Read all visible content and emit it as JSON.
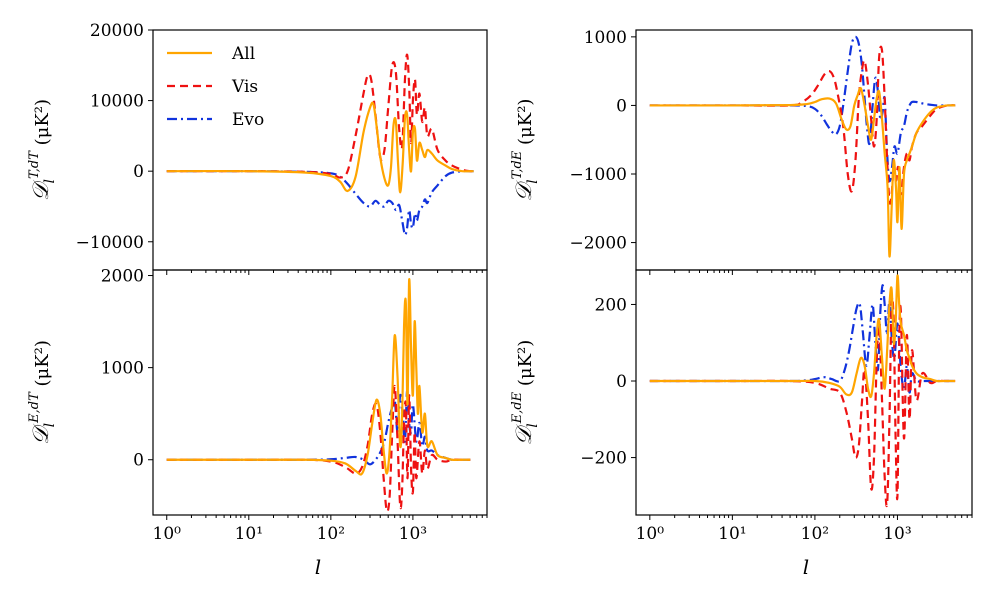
{
  "figure": {
    "xlabel": "l",
    "series_styles": [
      {
        "name": "All",
        "color": "#FFA500",
        "dash": ""
      },
      {
        "name": "Vis",
        "color": "#EE1111",
        "dash": "8,5"
      },
      {
        "name": "Evo",
        "color": "#1133DD",
        "dash": "10,4,2,4"
      }
    ],
    "legend": {
      "location": "top-left of top-left panel",
      "entries": [
        "All",
        "Vis",
        "Evo"
      ]
    }
  },
  "chart_data": [
    {
      "type": "line",
      "panel": "top-left",
      "ylabel_main": "𝒟",
      "ylabel_sub": "l",
      "ylabel_sup": "T,dT",
      "ylabel_unit": " (μK²)",
      "xscale": "log",
      "xlim": [
        0.68,
        8000
      ],
      "ylim": [
        -14000,
        20000
      ],
      "yticks": [
        -10000,
        0,
        10000,
        20000
      ],
      "yticklabels": [
        "−10000",
        "0",
        "10000",
        "20000"
      ],
      "xticklabels": [],
      "series": [
        {
          "name": "All",
          "x": [
            1,
            10,
            50,
            100,
            130,
            160,
            200,
            250,
            300,
            330,
            360,
            400,
            450,
            500,
            540,
            580,
            620,
            660,
            700,
            750,
            800,
            850,
            900,
            950,
            1000,
            1060,
            1120,
            1200,
            1300,
            1400,
            1500,
            1700,
            2000,
            2500,
            3000,
            4000,
            5000,
            5500
          ],
          "values": [
            0,
            0,
            -200,
            -700,
            -1500,
            -2800,
            -800,
            5500,
            9000,
            9500,
            6500,
            2000,
            -1000,
            -2000,
            500,
            6500,
            7000,
            1000,
            -3000,
            1000,
            7500,
            8000,
            3000,
            0,
            5500,
            6000,
            1500,
            4000,
            3000,
            2000,
            3000,
            2500,
            1500,
            800,
            300,
            0,
            0,
            0
          ]
        },
        {
          "name": "Vis",
          "x": [
            1,
            10,
            50,
            100,
            130,
            160,
            200,
            250,
            280,
            310,
            350,
            400,
            450,
            500,
            560,
            620,
            680,
            740,
            800,
            850,
            900,
            950,
            1000,
            1060,
            1120,
            1200,
            1300,
            1400,
            1500,
            1700,
            2000,
            2500,
            3000,
            4000,
            5000,
            5500
          ],
          "values": [
            0,
            0,
            -100,
            -400,
            -900,
            0,
            5000,
            11000,
            13500,
            13000,
            8000,
            2000,
            3000,
            9000,
            15000,
            14000,
            6000,
            3500,
            13000,
            16500,
            12000,
            4000,
            10000,
            13000,
            8000,
            11000,
            7000,
            9000,
            5000,
            6000,
            3000,
            1500,
            800,
            200,
            0,
            0
          ]
        },
        {
          "name": "Evo",
          "x": [
            1,
            10,
            50,
            100,
            130,
            160,
            200,
            250,
            300,
            350,
            400,
            450,
            500,
            560,
            620,
            680,
            740,
            800,
            850,
            900,
            950,
            1000,
            1060,
            1120,
            1200,
            1300,
            1400,
            1500,
            1700,
            2000,
            2500,
            3000,
            4000,
            5000,
            5500
          ],
          "values": [
            0,
            0,
            -100,
            -300,
            -800,
            -1800,
            -3200,
            -4500,
            -5000,
            -4200,
            -4800,
            -5000,
            -4200,
            -4500,
            -5500,
            -4800,
            -7000,
            -9000,
            -8000,
            -5500,
            -7500,
            -8000,
            -6000,
            -7000,
            -5500,
            -5000,
            -4000,
            -4500,
            -3000,
            -2000,
            -700,
            -200,
            0,
            0,
            0
          ]
        }
      ]
    },
    {
      "type": "line",
      "panel": "top-right",
      "ylabel_main": "𝒟",
      "ylabel_sub": "l",
      "ylabel_sup": "T,dE",
      "ylabel_unit": " (μK²)",
      "xscale": "log",
      "xlim": [
        0.68,
        8000
      ],
      "ylim": [
        -2400,
        1100
      ],
      "yticks": [
        -2000,
        -1000,
        0,
        1000
      ],
      "yticklabels": [
        "−2000",
        "−1000",
        "0",
        "1000"
      ],
      "xticklabels": [],
      "series": [
        {
          "name": "All",
          "x": [
            1,
            10,
            50,
            80,
            100,
            120,
            150,
            180,
            210,
            240,
            270,
            300,
            330,
            360,
            400,
            440,
            480,
            520,
            560,
            600,
            650,
            700,
            760,
            800,
            850,
            900,
            960,
            1000,
            1060,
            1120,
            1200,
            1300,
            1400,
            1500,
            1700,
            2000,
            2500,
            3000,
            4000,
            5000
          ],
          "values": [
            0,
            0,
            5,
            20,
            50,
            90,
            100,
            30,
            -200,
            -350,
            -300,
            0,
            150,
            250,
            0,
            -300,
            -500,
            -200,
            100,
            200,
            -200,
            -700,
            -1200,
            -2200,
            -1500,
            -800,
            -1200,
            -1700,
            -900,
            -1800,
            -1000,
            -800,
            -700,
            -600,
            -400,
            -250,
            -100,
            -30,
            0,
            0
          ]
        },
        {
          "name": "Vis",
          "x": [
            1,
            10,
            50,
            70,
            90,
            110,
            130,
            150,
            170,
            190,
            220,
            250,
            280,
            310,
            340,
            370,
            400,
            440,
            480,
            520,
            560,
            600,
            650,
            700,
            750,
            800,
            850,
            900,
            960,
            1020,
            1100,
            1200,
            1300,
            1400,
            1500,
            1700,
            2000,
            2500,
            3000,
            4000,
            5000
          ],
          "values": [
            0,
            0,
            0,
            50,
            150,
            300,
            450,
            500,
            400,
            150,
            -300,
            -1000,
            -1250,
            -800,
            100,
            500,
            650,
            300,
            -200,
            -600,
            -200,
            700,
            800,
            100,
            -800,
            -1400,
            -1300,
            -900,
            -1100,
            -900,
            -1300,
            -900,
            -700,
            -800,
            -600,
            -400,
            -300,
            -150,
            -50,
            0,
            0
          ]
        },
        {
          "name": "Evo",
          "x": [
            1,
            10,
            50,
            80,
            100,
            120,
            140,
            160,
            180,
            200,
            220,
            250,
            280,
            310,
            340,
            370,
            400,
            430,
            460,
            500,
            540,
            580,
            620,
            660,
            700,
            750,
            800,
            860,
            920,
            1000,
            1100,
            1200,
            1300,
            1400,
            1500,
            1700,
            2000,
            2500,
            3000,
            4000,
            5000
          ],
          "values": [
            0,
            0,
            0,
            -10,
            -50,
            -150,
            -280,
            -380,
            -420,
            -300,
            0,
            500,
            900,
            1000,
            900,
            600,
            100,
            -350,
            -550,
            0,
            400,
            200,
            -200,
            -100,
            100,
            -700,
            -1100,
            -900,
            -600,
            -700,
            -400,
            -300,
            -100,
            0,
            50,
            50,
            30,
            10,
            0,
            0,
            0
          ]
        }
      ]
    },
    {
      "type": "line",
      "panel": "bottom-left",
      "ylabel_main": "𝒟",
      "ylabel_sub": "l",
      "ylabel_sup": "E,dT",
      "ylabel_unit": " (μK²)",
      "xscale": "log",
      "xlim": [
        0.68,
        8000
      ],
      "ylim": [
        -600,
        2060
      ],
      "yticks": [
        0,
        1000,
        2000
      ],
      "yticklabels": [
        "0",
        "1000",
        "2000"
      ],
      "xticks": [
        1,
        10,
        100,
        1000
      ],
      "xticklabels": [
        "10⁰",
        "10¹",
        "10²",
        "10³"
      ],
      "series": [
        {
          "name": "All",
          "x": [
            1,
            10,
            50,
            100,
            150,
            200,
            240,
            280,
            320,
            360,
            400,
            440,
            480,
            520,
            560,
            600,
            650,
            700,
            740,
            780,
            820,
            860,
            900,
            950,
            1000,
            1050,
            1100,
            1150,
            1200,
            1300,
            1400,
            1500,
            1700,
            2000,
            2500,
            3000,
            4000,
            5000
          ],
          "values": [
            0,
            0,
            0,
            -10,
            -40,
            -120,
            -150,
            50,
            400,
            650,
            500,
            100,
            -150,
            100,
            700,
            1350,
            900,
            150,
            500,
            1450,
            1700,
            600,
            1950,
            1200,
            700,
            1500,
            1000,
            500,
            800,
            300,
            500,
            150,
            200,
            50,
            20,
            0,
            0,
            0
          ]
        },
        {
          "name": "Vis",
          "x": [
            1,
            10,
            50,
            100,
            150,
            200,
            240,
            280,
            320,
            360,
            400,
            440,
            480,
            520,
            560,
            600,
            650,
            700,
            740,
            780,
            820,
            860,
            900,
            950,
            1000,
            1050,
            1100,
            1200,
            1300,
            1400,
            1500,
            1700,
            2000,
            2500,
            3000,
            4000,
            5000
          ],
          "values": [
            0,
            0,
            0,
            -20,
            -80,
            -150,
            -80,
            150,
            500,
            600,
            300,
            -200,
            -550,
            -400,
            300,
            800,
            200,
            -500,
            -300,
            400,
            600,
            -200,
            700,
            -100,
            -350,
            300,
            -200,
            200,
            -150,
            100,
            -100,
            50,
            0,
            -20,
            0,
            0,
            0
          ]
        },
        {
          "name": "Evo",
          "x": [
            1,
            10,
            50,
            100,
            150,
            200,
            250,
            300,
            350,
            400,
            450,
            500,
            550,
            600,
            650,
            700,
            750,
            800,
            850,
            900,
            950,
            1000,
            1100,
            1200,
            1300,
            1400,
            1500,
            1700,
            2000,
            2500,
            3000,
            4000,
            5000
          ],
          "values": [
            0,
            0,
            0,
            5,
            20,
            30,
            0,
            -50,
            0,
            80,
            200,
            400,
            550,
            650,
            300,
            700,
            500,
            200,
            750,
            400,
            300,
            600,
            200,
            400,
            150,
            250,
            100,
            100,
            50,
            20,
            0,
            0,
            0
          ]
        }
      ]
    },
    {
      "type": "line",
      "panel": "bottom-right",
      "ylabel_main": "𝒟",
      "ylabel_sub": "l",
      "ylabel_sup": "E,dE",
      "ylabel_unit": " (μK²)",
      "xscale": "log",
      "xlim": [
        0.68,
        8000
      ],
      "ylim": [
        -350,
        290
      ],
      "yticks": [
        -200,
        0,
        200
      ],
      "yticklabels": [
        "−200",
        "0",
        "200"
      ],
      "xticks": [
        1,
        10,
        100,
        1000
      ],
      "xticklabels": [
        "10⁰",
        "10¹",
        "10²",
        "10³"
      ],
      "series": [
        {
          "name": "All",
          "x": [
            1,
            10,
            50,
            100,
            150,
            200,
            240,
            280,
            320,
            360,
            400,
            440,
            480,
            520,
            560,
            600,
            650,
            700,
            750,
            800,
            850,
            900,
            950,
            1000,
            1050,
            1100,
            1200,
            1300,
            1400,
            1500,
            1700,
            2000,
            2500,
            3000,
            4000,
            5000
          ],
          "values": [
            0,
            0,
            0,
            0,
            -5,
            -15,
            -35,
            -30,
            20,
            60,
            40,
            -20,
            -40,
            20,
            120,
            160,
            60,
            -20,
            80,
            200,
            240,
            100,
            150,
            275,
            200,
            150,
            120,
            80,
            60,
            40,
            20,
            10,
            5,
            0,
            0,
            0
          ]
        },
        {
          "name": "Vis",
          "x": [
            1,
            10,
            50,
            100,
            150,
            200,
            240,
            280,
            310,
            340,
            370,
            400,
            440,
            480,
            520,
            560,
            600,
            650,
            700,
            750,
            800,
            850,
            900,
            950,
            1000,
            1050,
            1100,
            1200,
            1300,
            1400,
            1500,
            1700,
            2000,
            2500,
            3000,
            4000,
            5000
          ],
          "values": [
            0,
            0,
            0,
            -5,
            -20,
            -30,
            -80,
            -150,
            -200,
            -170,
            -60,
            30,
            -100,
            -280,
            -200,
            50,
            140,
            -50,
            -250,
            -320,
            -100,
            200,
            150,
            -150,
            -300,
            100,
            180,
            -150,
            120,
            -100,
            80,
            -50,
            20,
            -5,
            0,
            0,
            0
          ]
        },
        {
          "name": "Evo",
          "x": [
            1,
            10,
            50,
            80,
            100,
            130,
            160,
            200,
            230,
            260,
            290,
            320,
            350,
            380,
            420,
            460,
            500,
            540,
            580,
            620,
            660,
            700,
            750,
            800,
            860,
            920,
            1000,
            1100,
            1200,
            1300,
            1400,
            1500,
            1700,
            2000,
            2500,
            3000,
            4000,
            5000
          ],
          "values": [
            0,
            0,
            0,
            2,
            5,
            10,
            5,
            0,
            30,
            80,
            140,
            190,
            200,
            130,
            40,
            120,
            200,
            100,
            30,
            180,
            250,
            200,
            120,
            210,
            100,
            60,
            150,
            30,
            -20,
            40,
            -30,
            20,
            0,
            0,
            0,
            0,
            0,
            0
          ]
        }
      ]
    }
  ]
}
